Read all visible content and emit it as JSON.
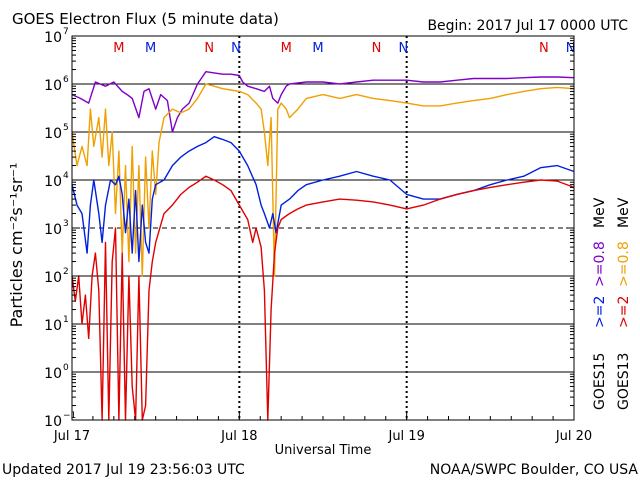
{
  "header": {
    "title": "GOES Electron Flux (5 minute data)",
    "begin": "Begin: 2017 Jul 17 0000 UTC"
  },
  "footer": {
    "updated": "Updated 2017 Jul 19 23:56:03 UTC",
    "credit": "NOAA/SWPC Boulder, CO USA"
  },
  "colors": {
    "goes15_ge08": "#7f00c8",
    "goes13_ge08": "#f0a000",
    "goes15_ge2": "#0020e0",
    "goes13_ge2": "#e00000",
    "goes15_marker": "#0020e0",
    "goes13_marker": "#e00000",
    "grid": "#000000"
  },
  "markers": [
    {
      "label": "M",
      "x": 0.28,
      "color": "goes13_marker"
    },
    {
      "label": "M",
      "x": 0.47,
      "color": "goes15_marker"
    },
    {
      "label": "N",
      "x": 0.82,
      "color": "goes13_marker"
    },
    {
      "label": "N",
      "x": 0.98,
      "color": "goes15_marker"
    },
    {
      "label": "M",
      "x": 1.28,
      "color": "goes13_marker"
    },
    {
      "label": "M",
      "x": 1.47,
      "color": "goes15_marker"
    },
    {
      "label": "N",
      "x": 1.82,
      "color": "goes13_marker"
    },
    {
      "label": "N",
      "x": 1.98,
      "color": "goes15_marker"
    },
    {
      "label": "N",
      "x": 2.82,
      "color": "goes13_marker"
    },
    {
      "label": "N",
      "x": 2.98,
      "color": "goes15_marker"
    }
  ],
  "legend": {
    "placement": "right",
    "columns": [
      {
        "satellite": "GOES15",
        "entries": [
          {
            "text": ">=2",
            "color": "goes15_ge2"
          },
          {
            "text": ">=0.8",
            "color": "goes15_ge08"
          }
        ]
      },
      {
        "satellite": "GOES13",
        "entries": [
          {
            "text": ">=2",
            "color": "goes13_ge2"
          },
          {
            "text": ">=0.8",
            "color": "goes13_ge08"
          }
        ]
      }
    ],
    "unit": "MeV"
  },
  "chart_data": {
    "type": "line",
    "title": "GOES Electron Flux (5 minute data)",
    "xlabel": "Universal Time",
    "ylabel": "Particles cm⁻²s⁻¹sr⁻¹",
    "x_unit": "days since 2017 Jul 17 0000 UTC",
    "xlim": [
      0,
      3
    ],
    "ylim": [
      0.1,
      10000000
    ],
    "yscale": "log",
    "x_ticks": [
      {
        "x": 0,
        "label": "Jul 17"
      },
      {
        "x": 1,
        "label": "Jul 18"
      },
      {
        "x": 2,
        "label": "Jul 19"
      },
      {
        "x": 3,
        "label": "Jul 20"
      }
    ],
    "y_ticks": [
      {
        "exp": -1,
        "label": "10",
        "sup": "−1"
      },
      {
        "exp": 0,
        "label": "10",
        "sup": "0"
      },
      {
        "exp": 1,
        "label": "10",
        "sup": "1"
      },
      {
        "exp": 2,
        "label": "10",
        "sup": "2"
      },
      {
        "exp": 3,
        "label": "10",
        "sup": "3"
      },
      {
        "exp": 4,
        "label": "10",
        "sup": "4"
      },
      {
        "exp": 5,
        "label": "10",
        "sup": "5"
      },
      {
        "exp": 6,
        "label": "10",
        "sup": "6"
      },
      {
        "exp": 7,
        "label": "10",
        "sup": "7"
      }
    ],
    "threshold_line": 1000,
    "grid": true,
    "series": [
      {
        "name": "GOES15 >=0.8 MeV",
        "color": "goes15_ge08",
        "points": [
          [
            0,
            600000
          ],
          [
            0.05,
            500000
          ],
          [
            0.1,
            400000
          ],
          [
            0.14,
            1100000
          ],
          [
            0.2,
            900000
          ],
          [
            0.25,
            1100000
          ],
          [
            0.3,
            700000
          ],
          [
            0.33,
            600000
          ],
          [
            0.36,
            500000
          ],
          [
            0.4,
            200000
          ],
          [
            0.43,
            700000
          ],
          [
            0.46,
            800000
          ],
          [
            0.5,
            300000
          ],
          [
            0.53,
            600000
          ],
          [
            0.57,
            450000
          ],
          [
            0.6,
            100000
          ],
          [
            0.63,
            200000
          ],
          [
            0.66,
            300000
          ],
          [
            0.7,
            400000
          ],
          [
            0.75,
            1000000
          ],
          [
            0.8,
            1800000
          ],
          [
            0.85,
            1700000
          ],
          [
            0.9,
            1600000
          ],
          [
            0.95,
            1600000
          ],
          [
            1.0,
            1500000
          ],
          [
            1.02,
            1100000
          ],
          [
            1.05,
            900000
          ],
          [
            1.1,
            800000
          ],
          [
            1.15,
            700000
          ],
          [
            1.18,
            900000
          ],
          [
            1.2,
            500000
          ],
          [
            1.23,
            400000
          ],
          [
            1.25,
            600000
          ],
          [
            1.28,
            900000
          ],
          [
            1.3,
            1000000
          ],
          [
            1.4,
            1100000
          ],
          [
            1.5,
            1100000
          ],
          [
            1.6,
            1000000
          ],
          [
            1.7,
            1100000
          ],
          [
            1.8,
            1200000
          ],
          [
            1.9,
            1200000
          ],
          [
            2.0,
            1200000
          ],
          [
            2.1,
            1100000
          ],
          [
            2.2,
            1100000
          ],
          [
            2.3,
            1200000
          ],
          [
            2.4,
            1300000
          ],
          [
            2.5,
            1300000
          ],
          [
            2.6,
            1300000
          ],
          [
            2.7,
            1350000
          ],
          [
            2.8,
            1400000
          ],
          [
            2.9,
            1400000
          ],
          [
            3.0,
            1350000
          ]
        ]
      },
      {
        "name": "GOES13 >=0.8 MeV",
        "color": "goes13_ge08",
        "points": [
          [
            0,
            100000
          ],
          [
            0.03,
            20000
          ],
          [
            0.06,
            50000
          ],
          [
            0.09,
            20000
          ],
          [
            0.11,
            300000
          ],
          [
            0.13,
            50000
          ],
          [
            0.16,
            200000
          ],
          [
            0.18,
            30000
          ],
          [
            0.2,
            300000
          ],
          [
            0.22,
            20000
          ],
          [
            0.24,
            100000
          ],
          [
            0.26,
            2000
          ],
          [
            0.28,
            40000
          ],
          [
            0.3,
            300
          ],
          [
            0.32,
            20000
          ],
          [
            0.34,
            200
          ],
          [
            0.36,
            50000
          ],
          [
            0.38,
            300
          ],
          [
            0.4,
            20000
          ],
          [
            0.42,
            100
          ],
          [
            0.44,
            30000
          ],
          [
            0.46,
            1000
          ],
          [
            0.48,
            40000
          ],
          [
            0.5,
            5000
          ],
          [
            0.52,
            60000
          ],
          [
            0.55,
            200000
          ],
          [
            0.6,
            300000
          ],
          [
            0.65,
            250000
          ],
          [
            0.7,
            300000
          ],
          [
            0.75,
            500000
          ],
          [
            0.8,
            1000000
          ],
          [
            0.85,
            900000
          ],
          [
            0.9,
            800000
          ],
          [
            0.95,
            750000
          ],
          [
            1.0,
            700000
          ],
          [
            1.05,
            600000
          ],
          [
            1.1,
            400000
          ],
          [
            1.13,
            300000
          ],
          [
            1.15,
            100000
          ],
          [
            1.17,
            20000
          ],
          [
            1.19,
            200000
          ],
          [
            1.21,
            100
          ],
          [
            1.23,
            300000
          ],
          [
            1.25,
            400000
          ],
          [
            1.28,
            300000
          ],
          [
            1.3,
            200000
          ],
          [
            1.35,
            300000
          ],
          [
            1.4,
            500000
          ],
          [
            1.5,
            600000
          ],
          [
            1.6,
            500000
          ],
          [
            1.7,
            600000
          ],
          [
            1.8,
            500000
          ],
          [
            1.9,
            450000
          ],
          [
            2.0,
            400000
          ],
          [
            2.1,
            350000
          ],
          [
            2.2,
            350000
          ],
          [
            2.3,
            400000
          ],
          [
            2.4,
            450000
          ],
          [
            2.5,
            500000
          ],
          [
            2.6,
            600000
          ],
          [
            2.7,
            700000
          ],
          [
            2.8,
            800000
          ],
          [
            2.9,
            850000
          ],
          [
            3.0,
            800000
          ]
        ]
      },
      {
        "name": "GOES15 >=2 MeV",
        "color": "goes15_ge2",
        "points": [
          [
            0,
            8000
          ],
          [
            0.03,
            3000
          ],
          [
            0.06,
            2000
          ],
          [
            0.09,
            300
          ],
          [
            0.11,
            3000
          ],
          [
            0.13,
            10000
          ],
          [
            0.16,
            2000
          ],
          [
            0.18,
            500
          ],
          [
            0.2,
            3000
          ],
          [
            0.23,
            10000
          ],
          [
            0.26,
            8000
          ],
          [
            0.28,
            12000
          ],
          [
            0.3,
            5000
          ],
          [
            0.32,
            800
          ],
          [
            0.34,
            4000
          ],
          [
            0.36,
            300
          ],
          [
            0.38,
            6000
          ],
          [
            0.4,
            200
          ],
          [
            0.42,
            3000
          ],
          [
            0.44,
            500
          ],
          [
            0.46,
            300
          ],
          [
            0.48,
            4000
          ],
          [
            0.5,
            8000
          ],
          [
            0.55,
            10000
          ],
          [
            0.6,
            20000
          ],
          [
            0.65,
            30000
          ],
          [
            0.7,
            40000
          ],
          [
            0.75,
            50000
          ],
          [
            0.8,
            60000
          ],
          [
            0.85,
            80000
          ],
          [
            0.9,
            70000
          ],
          [
            0.95,
            60000
          ],
          [
            1.0,
            40000
          ],
          [
            1.05,
            20000
          ],
          [
            1.1,
            8000
          ],
          [
            1.13,
            3000
          ],
          [
            1.15,
            2000
          ],
          [
            1.18,
            1000
          ],
          [
            1.2,
            2000
          ],
          [
            1.22,
            800
          ],
          [
            1.25,
            3000
          ],
          [
            1.3,
            4000
          ],
          [
            1.35,
            6000
          ],
          [
            1.4,
            8000
          ],
          [
            1.5,
            10000
          ],
          [
            1.6,
            12000
          ],
          [
            1.7,
            15000
          ],
          [
            1.8,
            12000
          ],
          [
            1.9,
            10000
          ],
          [
            2.0,
            5000
          ],
          [
            2.1,
            4000
          ],
          [
            2.2,
            4000
          ],
          [
            2.3,
            5000
          ],
          [
            2.4,
            6000
          ],
          [
            2.5,
            8000
          ],
          [
            2.6,
            10000
          ],
          [
            2.7,
            12000
          ],
          [
            2.8,
            18000
          ],
          [
            2.9,
            20000
          ],
          [
            3.0,
            15000
          ]
        ]
      },
      {
        "name": "GOES13 >=2 MeV",
        "color": "goes13_ge2",
        "points": [
          [
            0,
            100
          ],
          [
            0.02,
            30
          ],
          [
            0.04,
            100
          ],
          [
            0.06,
            10
          ],
          [
            0.08,
            40
          ],
          [
            0.1,
            5
          ],
          [
            0.12,
            100
          ],
          [
            0.14,
            300
          ],
          [
            0.16,
            50
          ],
          [
            0.18,
            0.1
          ],
          [
            0.2,
            500
          ],
          [
            0.22,
            0.1
          ],
          [
            0.24,
            200
          ],
          [
            0.26,
            1000
          ],
          [
            0.28,
            0.1
          ],
          [
            0.3,
            300
          ],
          [
            0.32,
            0.1
          ],
          [
            0.34,
            100
          ],
          [
            0.36,
            0.5
          ],
          [
            0.38,
            0.1
          ],
          [
            0.4,
            100
          ],
          [
            0.42,
            0.1
          ],
          [
            0.44,
            0.2
          ],
          [
            0.46,
            50
          ],
          [
            0.48,
            200
          ],
          [
            0.5,
            500
          ],
          [
            0.55,
            2000
          ],
          [
            0.6,
            3000
          ],
          [
            0.65,
            5000
          ],
          [
            0.7,
            7000
          ],
          [
            0.75,
            9000
          ],
          [
            0.8,
            12000
          ],
          [
            0.85,
            10000
          ],
          [
            0.9,
            8000
          ],
          [
            0.95,
            6000
          ],
          [
            1.0,
            3000
          ],
          [
            1.05,
            1500
          ],
          [
            1.08,
            500
          ],
          [
            1.1,
            1000
          ],
          [
            1.13,
            400
          ],
          [
            1.15,
            50
          ],
          [
            1.17,
            0.1
          ],
          [
            1.19,
            20
          ],
          [
            1.21,
            300
          ],
          [
            1.23,
            1000
          ],
          [
            1.25,
            1500
          ],
          [
            1.3,
            2000
          ],
          [
            1.35,
            2500
          ],
          [
            1.4,
            3000
          ],
          [
            1.5,
            3500
          ],
          [
            1.6,
            4000
          ],
          [
            1.7,
            3800
          ],
          [
            1.8,
            3500
          ],
          [
            1.9,
            3000
          ],
          [
            2.0,
            2500
          ],
          [
            2.1,
            3000
          ],
          [
            2.2,
            4000
          ],
          [
            2.3,
            5000
          ],
          [
            2.4,
            6000
          ],
          [
            2.5,
            7000
          ],
          [
            2.6,
            8000
          ],
          [
            2.7,
            9000
          ],
          [
            2.8,
            10000
          ],
          [
            2.9,
            9500
          ],
          [
            3.0,
            7000
          ]
        ]
      }
    ]
  }
}
